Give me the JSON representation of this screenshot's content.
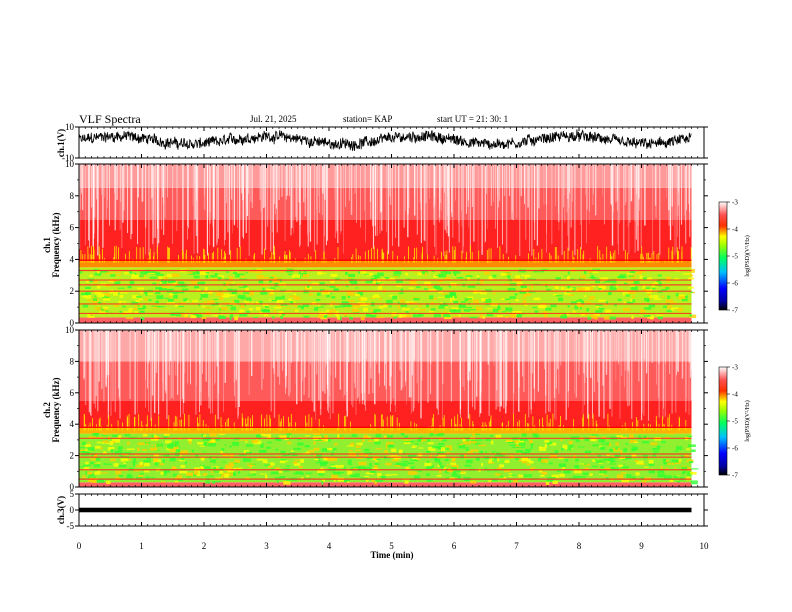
{
  "header": {
    "title": "VLF Spectra",
    "date": "Jul. 21, 2025",
    "station": "station= KAP",
    "start_ut": "start UT =  21: 30: 1"
  },
  "chart_data": [
    {
      "id": "ch1-waveform",
      "type": "line",
      "ylabel": "ch.1(V)",
      "ylim": [
        -10,
        10
      ],
      "yticks": [
        "10",
        "-10"
      ],
      "xlim": [
        0,
        10
      ],
      "x_data_end": 9.8,
      "description_values": "noisy waveform oscillating roughly between -4 and 7 V",
      "color": "#000000"
    },
    {
      "id": "ch1-spectrogram",
      "type": "heatmap",
      "ylabel": "ch.1\nFrequency (kHz)",
      "ylim": [
        0,
        10
      ],
      "yticks": [
        "0",
        "2",
        "4",
        "6",
        "8",
        "10"
      ],
      "xlim": [
        0,
        10
      ],
      "x_data_end": 9.8,
      "bands": [
        {
          "from": 0,
          "to": 0.3,
          "level": "red"
        },
        {
          "from": 0.3,
          "to": 3.5,
          "level": "green-yellow"
        },
        {
          "from": 3.5,
          "to": 4.0,
          "level": "red-yellow"
        },
        {
          "from": 4.0,
          "to": 7.0,
          "level": "red"
        },
        {
          "from": 7.0,
          "to": 10,
          "level": "light-red"
        }
      ],
      "colorbar": {
        "label": "log(PSD)(V²/Hz)",
        "ticks": [
          "-3",
          "-4",
          "-5",
          "-6",
          "-7"
        ],
        "range": [
          -7,
          -3
        ]
      }
    },
    {
      "id": "ch2-spectrogram",
      "type": "heatmap",
      "ylabel": "ch.2\nFrequency (kHz)",
      "ylim": [
        0,
        10
      ],
      "yticks": [
        "0",
        "2",
        "4",
        "6",
        "8",
        "10"
      ],
      "xlim": [
        0,
        10
      ],
      "x_data_end": 9.8,
      "colorbar": {
        "label": "log(PSD)(V²/Hz)",
        "ticks": [
          "-3",
          "-4",
          "-5",
          "-6",
          "-7"
        ],
        "range": [
          -7,
          -3
        ]
      }
    },
    {
      "id": "ch3-waveform",
      "type": "line",
      "ylabel": "ch.3(V)",
      "ylim": [
        -5,
        5
      ],
      "yticks": [
        "5",
        "0",
        "-5"
      ],
      "xlim": [
        0,
        10
      ],
      "x_data_end": 9.8,
      "band": [
        -0.4,
        0.4
      ],
      "color": "#000000"
    }
  ],
  "x_axis": {
    "label": "Time (min)",
    "ticks": [
      "0",
      "1",
      "2",
      "3",
      "4",
      "5",
      "6",
      "7",
      "8",
      "9",
      "10"
    ]
  },
  "colors": {
    "colormap": [
      "#000080",
      "#0000ff",
      "#00ffff",
      "#00ff00",
      "#ffff00",
      "#ff0000",
      "#ffffff"
    ]
  }
}
